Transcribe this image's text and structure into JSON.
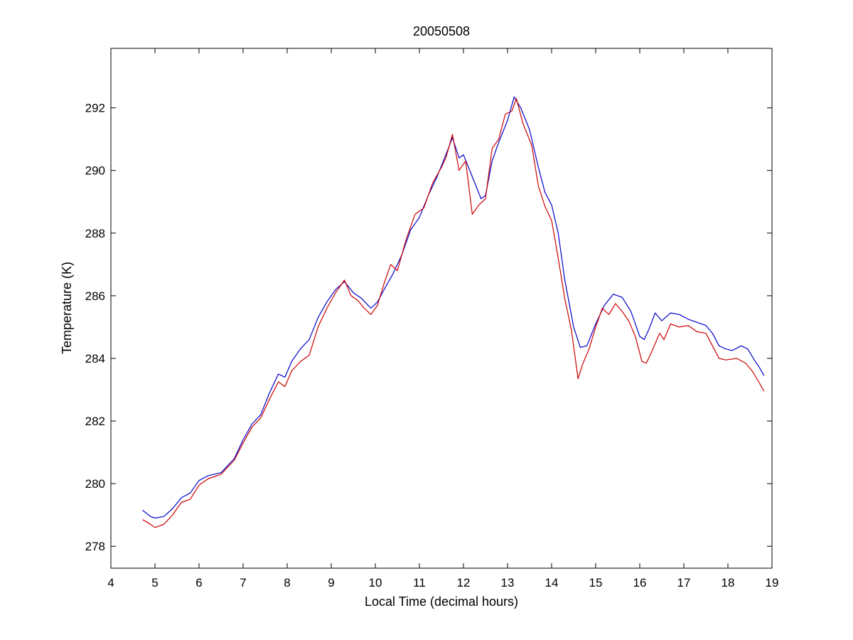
{
  "chart_data": {
    "type": "line",
    "title": "20050508",
    "xlabel": "Local Time (decimal hours)",
    "ylabel": "Temperature (K)",
    "xlim": [
      4,
      19
    ],
    "ylim": [
      277.3,
      293.9
    ],
    "x_ticks": [
      4,
      5,
      6,
      7,
      8,
      9,
      10,
      11,
      12,
      13,
      14,
      15,
      16,
      17,
      18,
      19
    ],
    "y_ticks": [
      278,
      280,
      282,
      284,
      286,
      288,
      290,
      292
    ],
    "grid": false,
    "legend": "none",
    "series": [
      {
        "color": "#0000cc",
        "points": [
          [
            4.72,
            279.15
          ],
          [
            4.9,
            278.95
          ],
          [
            5.0,
            278.9
          ],
          [
            5.2,
            278.95
          ],
          [
            5.4,
            279.2
          ],
          [
            5.6,
            279.55
          ],
          [
            5.8,
            279.7
          ],
          [
            6.0,
            280.1
          ],
          [
            6.2,
            280.25
          ],
          [
            6.5,
            280.35
          ],
          [
            6.8,
            280.8
          ],
          [
            7.0,
            281.4
          ],
          [
            7.2,
            281.9
          ],
          [
            7.4,
            282.2
          ],
          [
            7.6,
            282.9
          ],
          [
            7.8,
            283.5
          ],
          [
            7.95,
            283.4
          ],
          [
            8.1,
            283.9
          ],
          [
            8.3,
            284.3
          ],
          [
            8.5,
            284.6
          ],
          [
            8.7,
            285.3
          ],
          [
            8.9,
            285.8
          ],
          [
            9.1,
            286.2
          ],
          [
            9.3,
            286.45
          ],
          [
            9.5,
            286.1
          ],
          [
            9.7,
            285.9
          ],
          [
            9.9,
            285.6
          ],
          [
            10.05,
            285.8
          ],
          [
            10.2,
            286.2
          ],
          [
            10.4,
            286.7
          ],
          [
            10.6,
            287.3
          ],
          [
            10.8,
            288.1
          ],
          [
            11.0,
            288.5
          ],
          [
            11.2,
            289.2
          ],
          [
            11.4,
            289.8
          ],
          [
            11.6,
            290.5
          ],
          [
            11.75,
            291.05
          ],
          [
            11.9,
            290.4
          ],
          [
            12.0,
            290.5
          ],
          [
            12.2,
            289.8
          ],
          [
            12.4,
            289.1
          ],
          [
            12.5,
            289.2
          ],
          [
            12.65,
            290.3
          ],
          [
            12.8,
            290.9
          ],
          [
            13.0,
            291.6
          ],
          [
            13.15,
            292.35
          ],
          [
            13.3,
            292.0
          ],
          [
            13.5,
            291.3
          ],
          [
            13.7,
            290.1
          ],
          [
            13.85,
            289.3
          ],
          [
            14.0,
            288.9
          ],
          [
            14.15,
            288.0
          ],
          [
            14.3,
            286.5
          ],
          [
            14.5,
            285.0
          ],
          [
            14.65,
            284.35
          ],
          [
            14.8,
            284.4
          ],
          [
            15.0,
            285.1
          ],
          [
            15.2,
            285.7
          ],
          [
            15.4,
            286.05
          ],
          [
            15.6,
            285.95
          ],
          [
            15.8,
            285.5
          ],
          [
            16.0,
            284.7
          ],
          [
            16.1,
            284.6
          ],
          [
            16.2,
            284.9
          ],
          [
            16.35,
            285.45
          ],
          [
            16.5,
            285.2
          ],
          [
            16.7,
            285.45
          ],
          [
            16.9,
            285.4
          ],
          [
            17.1,
            285.25
          ],
          [
            17.3,
            285.15
          ],
          [
            17.5,
            285.05
          ],
          [
            17.65,
            284.8
          ],
          [
            17.8,
            284.4
          ],
          [
            17.95,
            284.3
          ],
          [
            18.1,
            284.25
          ],
          [
            18.3,
            284.4
          ],
          [
            18.45,
            284.3
          ],
          [
            18.6,
            283.95
          ],
          [
            18.72,
            283.7
          ],
          [
            18.82,
            283.45
          ]
        ]
      },
      {
        "color": "#cc0000",
        "points": [
          [
            4.72,
            278.85
          ],
          [
            4.9,
            278.7
          ],
          [
            5.0,
            278.6
          ],
          [
            5.2,
            278.7
          ],
          [
            5.4,
            279.0
          ],
          [
            5.6,
            279.4
          ],
          [
            5.8,
            279.5
          ],
          [
            6.0,
            279.95
          ],
          [
            6.2,
            280.15
          ],
          [
            6.5,
            280.3
          ],
          [
            6.8,
            280.75
          ],
          [
            7.0,
            281.3
          ],
          [
            7.2,
            281.8
          ],
          [
            7.4,
            282.1
          ],
          [
            7.6,
            282.7
          ],
          [
            7.8,
            283.25
          ],
          [
            7.95,
            283.1
          ],
          [
            8.1,
            283.6
          ],
          [
            8.3,
            283.9
          ],
          [
            8.5,
            284.1
          ],
          [
            8.7,
            285.0
          ],
          [
            8.9,
            285.6
          ],
          [
            9.1,
            286.1
          ],
          [
            9.3,
            286.5
          ],
          [
            9.45,
            286.0
          ],
          [
            9.6,
            285.85
          ],
          [
            9.75,
            285.6
          ],
          [
            9.9,
            285.4
          ],
          [
            10.05,
            285.7
          ],
          [
            10.2,
            286.4
          ],
          [
            10.35,
            287.0
          ],
          [
            10.5,
            286.8
          ],
          [
            10.7,
            287.8
          ],
          [
            10.9,
            288.6
          ],
          [
            11.1,
            288.8
          ],
          [
            11.3,
            289.6
          ],
          [
            11.5,
            290.1
          ],
          [
            11.6,
            290.4
          ],
          [
            11.75,
            291.15
          ],
          [
            11.9,
            290.0
          ],
          [
            12.05,
            290.3
          ],
          [
            12.2,
            288.6
          ],
          [
            12.35,
            288.9
          ],
          [
            12.5,
            289.1
          ],
          [
            12.65,
            290.7
          ],
          [
            12.8,
            291.0
          ],
          [
            12.95,
            291.8
          ],
          [
            13.1,
            291.9
          ],
          [
            13.2,
            292.3
          ],
          [
            13.35,
            291.5
          ],
          [
            13.55,
            290.8
          ],
          [
            13.7,
            289.5
          ],
          [
            13.85,
            288.85
          ],
          [
            14.0,
            288.4
          ],
          [
            14.15,
            287.2
          ],
          [
            14.3,
            285.9
          ],
          [
            14.45,
            284.9
          ],
          [
            14.6,
            283.35
          ],
          [
            14.7,
            283.8
          ],
          [
            14.85,
            284.3
          ],
          [
            15.0,
            285.0
          ],
          [
            15.15,
            285.6
          ],
          [
            15.3,
            285.4
          ],
          [
            15.45,
            285.75
          ],
          [
            15.6,
            285.5
          ],
          [
            15.75,
            285.2
          ],
          [
            15.9,
            284.7
          ],
          [
            16.05,
            283.9
          ],
          [
            16.15,
            283.85
          ],
          [
            16.3,
            284.3
          ],
          [
            16.45,
            284.8
          ],
          [
            16.55,
            284.6
          ],
          [
            16.7,
            285.1
          ],
          [
            16.9,
            285.0
          ],
          [
            17.1,
            285.05
          ],
          [
            17.3,
            284.85
          ],
          [
            17.5,
            284.8
          ],
          [
            17.65,
            284.4
          ],
          [
            17.8,
            284.0
          ],
          [
            17.95,
            283.95
          ],
          [
            18.2,
            284.0
          ],
          [
            18.4,
            283.85
          ],
          [
            18.55,
            283.6
          ],
          [
            18.7,
            283.25
          ],
          [
            18.82,
            282.95
          ]
        ]
      }
    ]
  }
}
